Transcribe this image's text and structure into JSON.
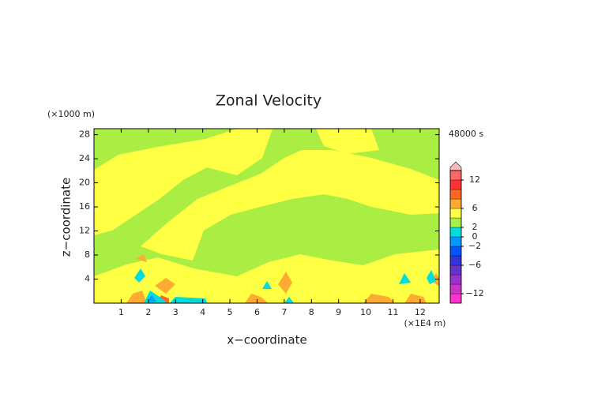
{
  "chart_data": {
    "type": "contour",
    "title": "Zonal Velocity",
    "x_label": "x−coordinate",
    "y_label": "z−coordinate",
    "y_unit": "(×1000 m)",
    "x_unit": "(×1E4 m)",
    "time_label": "48000 s",
    "xlim": [
      0,
      12.7
    ],
    "ylim": [
      0,
      29
    ],
    "xticks": [
      1,
      2,
      3,
      4,
      5,
      6,
      7,
      8,
      9,
      10,
      11,
      12
    ],
    "yticks": [
      4,
      8,
      12,
      16,
      20,
      24,
      28
    ],
    "colorbar": {
      "levels": [
        -14,
        -12,
        -10,
        -8,
        -6,
        -4,
        -2,
        0,
        2,
        4,
        6,
        8,
        10,
        12,
        14
      ],
      "colors": [
        "#ff33cc",
        "#cc33cc",
        "#9933cc",
        "#6633cc",
        "#3333dd",
        "#0055ff",
        "#0099ff",
        "#00dddd",
        "#aaee44",
        "#ffff44",
        "#ffaa33",
        "#ff6622",
        "#ff3333",
        "#ff6666"
      ],
      "over_color": "#ffbbbb",
      "ticks": [
        {
          "value": -12,
          "label": "−12"
        },
        {
          "value": -6,
          "label": "−6"
        },
        {
          "value": -2,
          "label": "−2"
        },
        0,
        2,
        6,
        12
      ]
    }
  }
}
